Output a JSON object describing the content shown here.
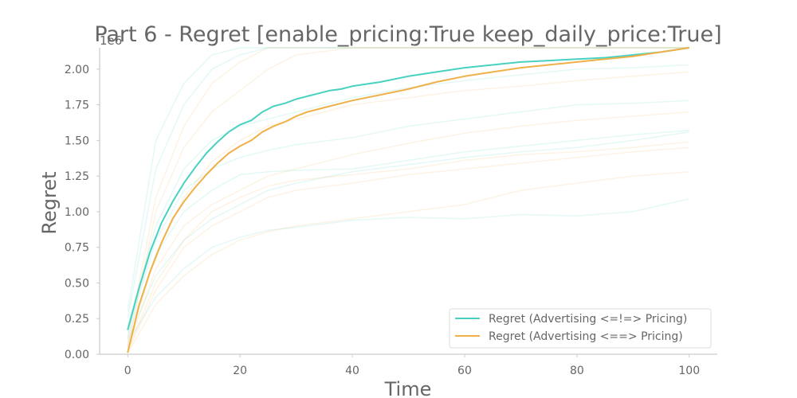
{
  "chart_data": {
    "type": "line",
    "title": "Part 6 - Regret [enable_pricing:True keep_daily_price:True]",
    "xlabel": "Time",
    "ylabel": "Regret",
    "scale_note": "1e6",
    "xlim": [
      -5,
      105
    ],
    "ylim": [
      0,
      2150000
    ],
    "xticks": [
      0,
      20,
      40,
      60,
      80,
      100
    ],
    "yticks": [
      0,
      250000,
      500000,
      750000,
      1000000,
      1250000,
      1500000,
      1750000,
      2000000
    ],
    "ytick_labels": [
      "0.00",
      "0.25",
      "0.50",
      "0.75",
      "1.00",
      "1.25",
      "1.50",
      "1.75",
      "2.00"
    ],
    "grid": false,
    "legend": "lower-right",
    "colors": {
      "series_a": "#48d1c0",
      "series_b": "#f0b048",
      "axis": "#cccccc",
      "text": "#666666"
    },
    "series": [
      {
        "name": "Regret (Advertising <=!=> Pricing)",
        "x": [
          0,
          2,
          4,
          6,
          8,
          10,
          12,
          14,
          16,
          18,
          20,
          22,
          24,
          26,
          28,
          30,
          32,
          34,
          36,
          38,
          40,
          45,
          50,
          55,
          60,
          65,
          70,
          75,
          80,
          85,
          90,
          95,
          100
        ],
        "values": [
          170000,
          460000,
          720000,
          920000,
          1070000,
          1200000,
          1310000,
          1410000,
          1490000,
          1560000,
          1610000,
          1640000,
          1700000,
          1740000,
          1760000,
          1790000,
          1810000,
          1830000,
          1850000,
          1860000,
          1880000,
          1910000,
          1950000,
          1980000,
          2010000,
          2030000,
          2050000,
          2060000,
          2070000,
          2080000,
          2100000,
          2120000,
          2150000
        ]
      },
      {
        "name": "Regret (Advertising <==> Pricing)",
        "x": [
          0,
          2,
          4,
          6,
          8,
          10,
          12,
          14,
          16,
          18,
          20,
          22,
          24,
          26,
          28,
          30,
          32,
          34,
          36,
          38,
          40,
          45,
          50,
          55,
          60,
          65,
          70,
          75,
          80,
          85,
          90,
          95,
          100
        ],
        "values": [
          10000,
          340000,
          580000,
          780000,
          950000,
          1070000,
          1170000,
          1260000,
          1340000,
          1410000,
          1460000,
          1500000,
          1560000,
          1600000,
          1630000,
          1670000,
          1700000,
          1720000,
          1740000,
          1760000,
          1780000,
          1820000,
          1860000,
          1910000,
          1950000,
          1980000,
          2010000,
          2030000,
          2050000,
          2070000,
          2090000,
          2120000,
          2150000
        ]
      }
    ],
    "runs_a": [
      {
        "x": [
          0,
          5,
          10,
          15,
          20,
          25,
          30,
          40,
          50,
          60,
          70,
          80,
          90,
          100
        ],
        "values": [
          300000,
          1500000,
          1900000,
          2100000,
          2150000,
          2150000,
          2150000,
          2150000,
          2150000,
          2150000,
          2150000,
          2150000,
          2150000,
          2150000
        ]
      },
      {
        "x": [
          0,
          5,
          10,
          15,
          20,
          25,
          30,
          40,
          50,
          60,
          70,
          80,
          90,
          100
        ],
        "values": [
          250000,
          1300000,
          1750000,
          2000000,
          2100000,
          2150000,
          2150000,
          2150000,
          2150000,
          2150000,
          2150000,
          2150000,
          2150000,
          2150000
        ]
      },
      {
        "x": [
          0,
          5,
          10,
          15,
          20,
          25,
          30,
          40,
          50,
          60,
          70,
          80,
          90,
          100
        ],
        "values": [
          200000,
          900000,
          1300000,
          1500000,
          1600000,
          1650000,
          1700000,
          1800000,
          1870000,
          1920000,
          1960000,
          2000000,
          2010000,
          2030000
        ]
      },
      {
        "x": [
          0,
          5,
          10,
          15,
          20,
          25,
          30,
          40,
          50,
          60,
          70,
          80,
          90,
          100
        ],
        "values": [
          150000,
          800000,
          1150000,
          1300000,
          1380000,
          1430000,
          1470000,
          1520000,
          1600000,
          1650000,
          1700000,
          1750000,
          1760000,
          1780000
        ]
      },
      {
        "x": [
          0,
          5,
          10,
          15,
          20,
          25,
          30,
          40,
          50,
          60,
          70,
          80,
          90,
          100
        ],
        "values": [
          120000,
          700000,
          1000000,
          1150000,
          1260000,
          1280000,
          1290000,
          1300000,
          1360000,
          1420000,
          1460000,
          1500000,
          1540000,
          1570000
        ]
      },
      {
        "x": [
          0,
          5,
          10,
          15,
          20,
          25,
          30,
          40,
          50,
          60,
          70,
          80,
          90,
          100
        ],
        "values": [
          100000,
          550000,
          800000,
          950000,
          1050000,
          1150000,
          1200000,
          1280000,
          1330000,
          1380000,
          1420000,
          1450000,
          1500000,
          1560000
        ]
      },
      {
        "x": [
          0,
          5,
          10,
          15,
          20,
          25,
          30,
          40,
          50,
          60,
          70,
          80,
          90,
          100
        ],
        "values": [
          80000,
          400000,
          600000,
          750000,
          820000,
          870000,
          890000,
          940000,
          960000,
          950000,
          980000,
          970000,
          1000000,
          1090000
        ]
      }
    ],
    "runs_b": [
      {
        "x": [
          0,
          5,
          10,
          15,
          20,
          25,
          30,
          40,
          50,
          60,
          70,
          80,
          90,
          100
        ],
        "values": [
          100000,
          1100000,
          1600000,
          1900000,
          2050000,
          2150000,
          2150000,
          2150000,
          2150000,
          2150000,
          2150000,
          2150000,
          2150000,
          2150000
        ]
      },
      {
        "x": [
          0,
          5,
          10,
          15,
          20,
          25,
          30,
          40,
          50,
          60,
          70,
          80,
          90,
          100
        ],
        "values": [
          50000,
          1000000,
          1450000,
          1700000,
          1850000,
          2000000,
          2100000,
          2150000,
          2150000,
          2150000,
          2150000,
          2150000,
          2150000,
          2150000
        ]
      },
      {
        "x": [
          0,
          5,
          10,
          15,
          20,
          25,
          30,
          40,
          50,
          60,
          70,
          80,
          90,
          100
        ],
        "values": [
          60000,
          700000,
          1100000,
          1350000,
          1500000,
          1600000,
          1650000,
          1750000,
          1800000,
          1850000,
          1880000,
          1920000,
          1950000,
          1980000
        ]
      },
      {
        "x": [
          0,
          5,
          10,
          15,
          20,
          25,
          30,
          40,
          50,
          60,
          70,
          80,
          90,
          100
        ],
        "values": [
          40000,
          600000,
          900000,
          1050000,
          1150000,
          1250000,
          1300000,
          1400000,
          1480000,
          1550000,
          1600000,
          1640000,
          1670000,
          1700000
        ]
      },
      {
        "x": [
          0,
          5,
          10,
          15,
          20,
          25,
          30,
          40,
          50,
          60,
          70,
          80,
          90,
          100
        ],
        "values": [
          30000,
          500000,
          800000,
          1000000,
          1100000,
          1180000,
          1220000,
          1260000,
          1300000,
          1360000,
          1400000,
          1420000,
          1450000,
          1490000
        ]
      },
      {
        "x": [
          0,
          5,
          10,
          15,
          20,
          25,
          30,
          40,
          50,
          60,
          70,
          80,
          90,
          100
        ],
        "values": [
          20000,
          450000,
          750000,
          900000,
          1000000,
          1100000,
          1150000,
          1200000,
          1260000,
          1300000,
          1340000,
          1380000,
          1420000,
          1450000
        ]
      },
      {
        "x": [
          0,
          5,
          10,
          15,
          20,
          25,
          30,
          40,
          50,
          60,
          70,
          80,
          90,
          100
        ],
        "values": [
          10000,
          350000,
          550000,
          700000,
          800000,
          860000,
          900000,
          950000,
          1000000,
          1050000,
          1150000,
          1200000,
          1250000,
          1280000
        ]
      }
    ]
  }
}
